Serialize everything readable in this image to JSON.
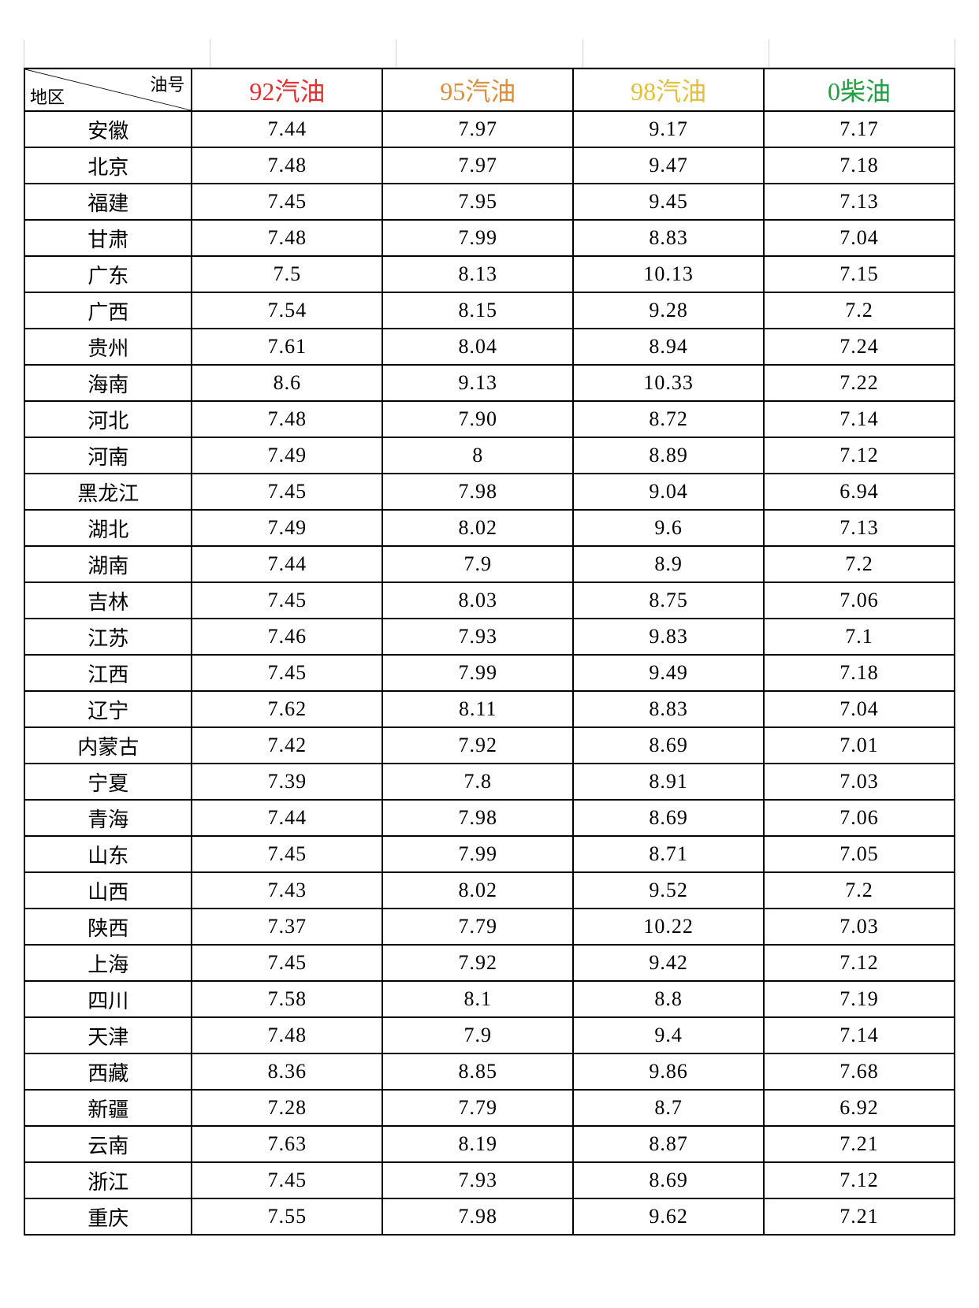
{
  "table": {
    "type": "table",
    "corner_top_label": "油号",
    "corner_bottom_label": "地区",
    "background_color": "#ffffff",
    "border_color": "#000000",
    "border_width": 2,
    "text_color": "#000000",
    "header_fontsize": 32,
    "cell_fontsize": 26,
    "font_family": "SimSun",
    "column_widths_pct": [
      18,
      20.5,
      20.5,
      20.5,
      20.5
    ],
    "columns": [
      {
        "label": "92汽油",
        "color": "#e03030"
      },
      {
        "label": "95汽油",
        "color": "#d89040"
      },
      {
        "label": "98汽油",
        "color": "#e0c040"
      },
      {
        "label": "0柴油",
        "color": "#20a040"
      }
    ],
    "rows": [
      {
        "region": "安徽",
        "v": [
          "7.44",
          "7.97",
          "9.17",
          "7.17"
        ]
      },
      {
        "region": "北京",
        "v": [
          "7.48",
          "7.97",
          "9.47",
          "7.18"
        ]
      },
      {
        "region": "福建",
        "v": [
          "7.45",
          "7.95",
          "9.45",
          "7.13"
        ]
      },
      {
        "region": "甘肃",
        "v": [
          "7.48",
          "7.99",
          "8.83",
          "7.04"
        ]
      },
      {
        "region": "广东",
        "v": [
          "7.5",
          "8.13",
          "10.13",
          "7.15"
        ]
      },
      {
        "region": "广西",
        "v": [
          "7.54",
          "8.15",
          "9.28",
          "7.2"
        ]
      },
      {
        "region": "贵州",
        "v": [
          "7.61",
          "8.04",
          "8.94",
          "7.24"
        ]
      },
      {
        "region": "海南",
        "v": [
          "8.6",
          "9.13",
          "10.33",
          "7.22"
        ]
      },
      {
        "region": "河北",
        "v": [
          "7.48",
          "7.90",
          "8.72",
          "7.14"
        ]
      },
      {
        "region": "河南",
        "v": [
          "7.49",
          "8",
          "8.89",
          "7.12"
        ]
      },
      {
        "region": "黑龙江",
        "v": [
          "7.45",
          "7.98",
          "9.04",
          "6.94"
        ]
      },
      {
        "region": "湖北",
        "v": [
          "7.49",
          "8.02",
          "9.6",
          "7.13"
        ]
      },
      {
        "region": "湖南",
        "v": [
          "7.44",
          "7.9",
          "8.9",
          "7.2"
        ]
      },
      {
        "region": "吉林",
        "v": [
          "7.45",
          "8.03",
          "8.75",
          "7.06"
        ]
      },
      {
        "region": "江苏",
        "v": [
          "7.46",
          "7.93",
          "9.83",
          "7.1"
        ]
      },
      {
        "region": "江西",
        "v": [
          "7.45",
          "7.99",
          "9.49",
          "7.18"
        ]
      },
      {
        "region": "辽宁",
        "v": [
          "7.62",
          "8.11",
          "8.83",
          "7.04"
        ]
      },
      {
        "region": "内蒙古",
        "v": [
          "7.42",
          "7.92",
          "8.69",
          "7.01"
        ]
      },
      {
        "region": "宁夏",
        "v": [
          "7.39",
          "7.8",
          "8.91",
          "7.03"
        ]
      },
      {
        "region": "青海",
        "v": [
          "7.44",
          "7.98",
          "8.69",
          "7.06"
        ]
      },
      {
        "region": "山东",
        "v": [
          "7.45",
          "7.99",
          "8.71",
          "7.05"
        ]
      },
      {
        "region": "山西",
        "v": [
          "7.43",
          "8.02",
          "9.52",
          "7.2"
        ]
      },
      {
        "region": "陕西",
        "v": [
          "7.37",
          "7.79",
          "10.22",
          "7.03"
        ]
      },
      {
        "region": "上海",
        "v": [
          "7.45",
          "7.92",
          "9.42",
          "7.12"
        ]
      },
      {
        "region": "四川",
        "v": [
          "7.58",
          "8.1",
          "8.8",
          "7.19"
        ]
      },
      {
        "region": "天津",
        "v": [
          "7.48",
          "7.9",
          "9.4",
          "7.14"
        ]
      },
      {
        "region": "西藏",
        "v": [
          "8.36",
          "8.85",
          "9.86",
          "7.68"
        ]
      },
      {
        "region": "新疆",
        "v": [
          "7.28",
          "7.79",
          "8.7",
          "6.92"
        ]
      },
      {
        "region": "云南",
        "v": [
          "7.63",
          "8.19",
          "8.87",
          "7.21"
        ]
      },
      {
        "region": "浙江",
        "v": [
          "7.45",
          "7.93",
          "8.69",
          "7.12"
        ]
      },
      {
        "region": "重庆",
        "v": [
          "7.55",
          "7.98",
          "9.62",
          "7.21"
        ]
      }
    ]
  }
}
